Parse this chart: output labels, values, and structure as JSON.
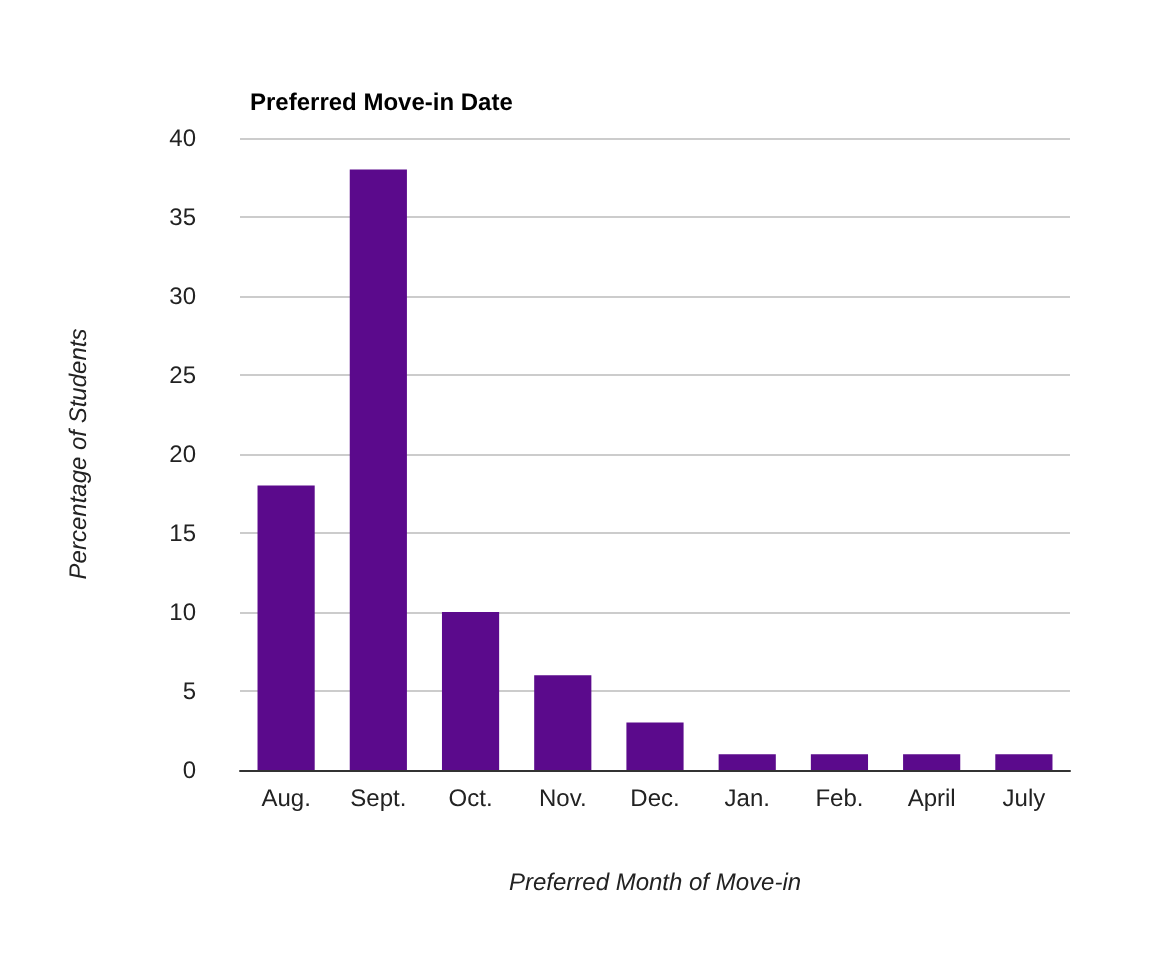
{
  "chart_data": {
    "type": "bar",
    "title": "Preferred Move-in Date",
    "xlabel": "Preferred Month of Move-in",
    "ylabel": "Percentage of Students",
    "categories": [
      "Aug.",
      "Sept.",
      "Oct.",
      "Nov.",
      "Dec.",
      "Jan.",
      "Feb.",
      "April",
      "July"
    ],
    "values": [
      18,
      38,
      10,
      6,
      3,
      1,
      1,
      1,
      1
    ],
    "color": "#5b0a8c",
    "ylim": [
      0,
      40
    ],
    "yticks": [
      0,
      5,
      10,
      15,
      20,
      25,
      30,
      35,
      40
    ],
    "grid": "y"
  }
}
